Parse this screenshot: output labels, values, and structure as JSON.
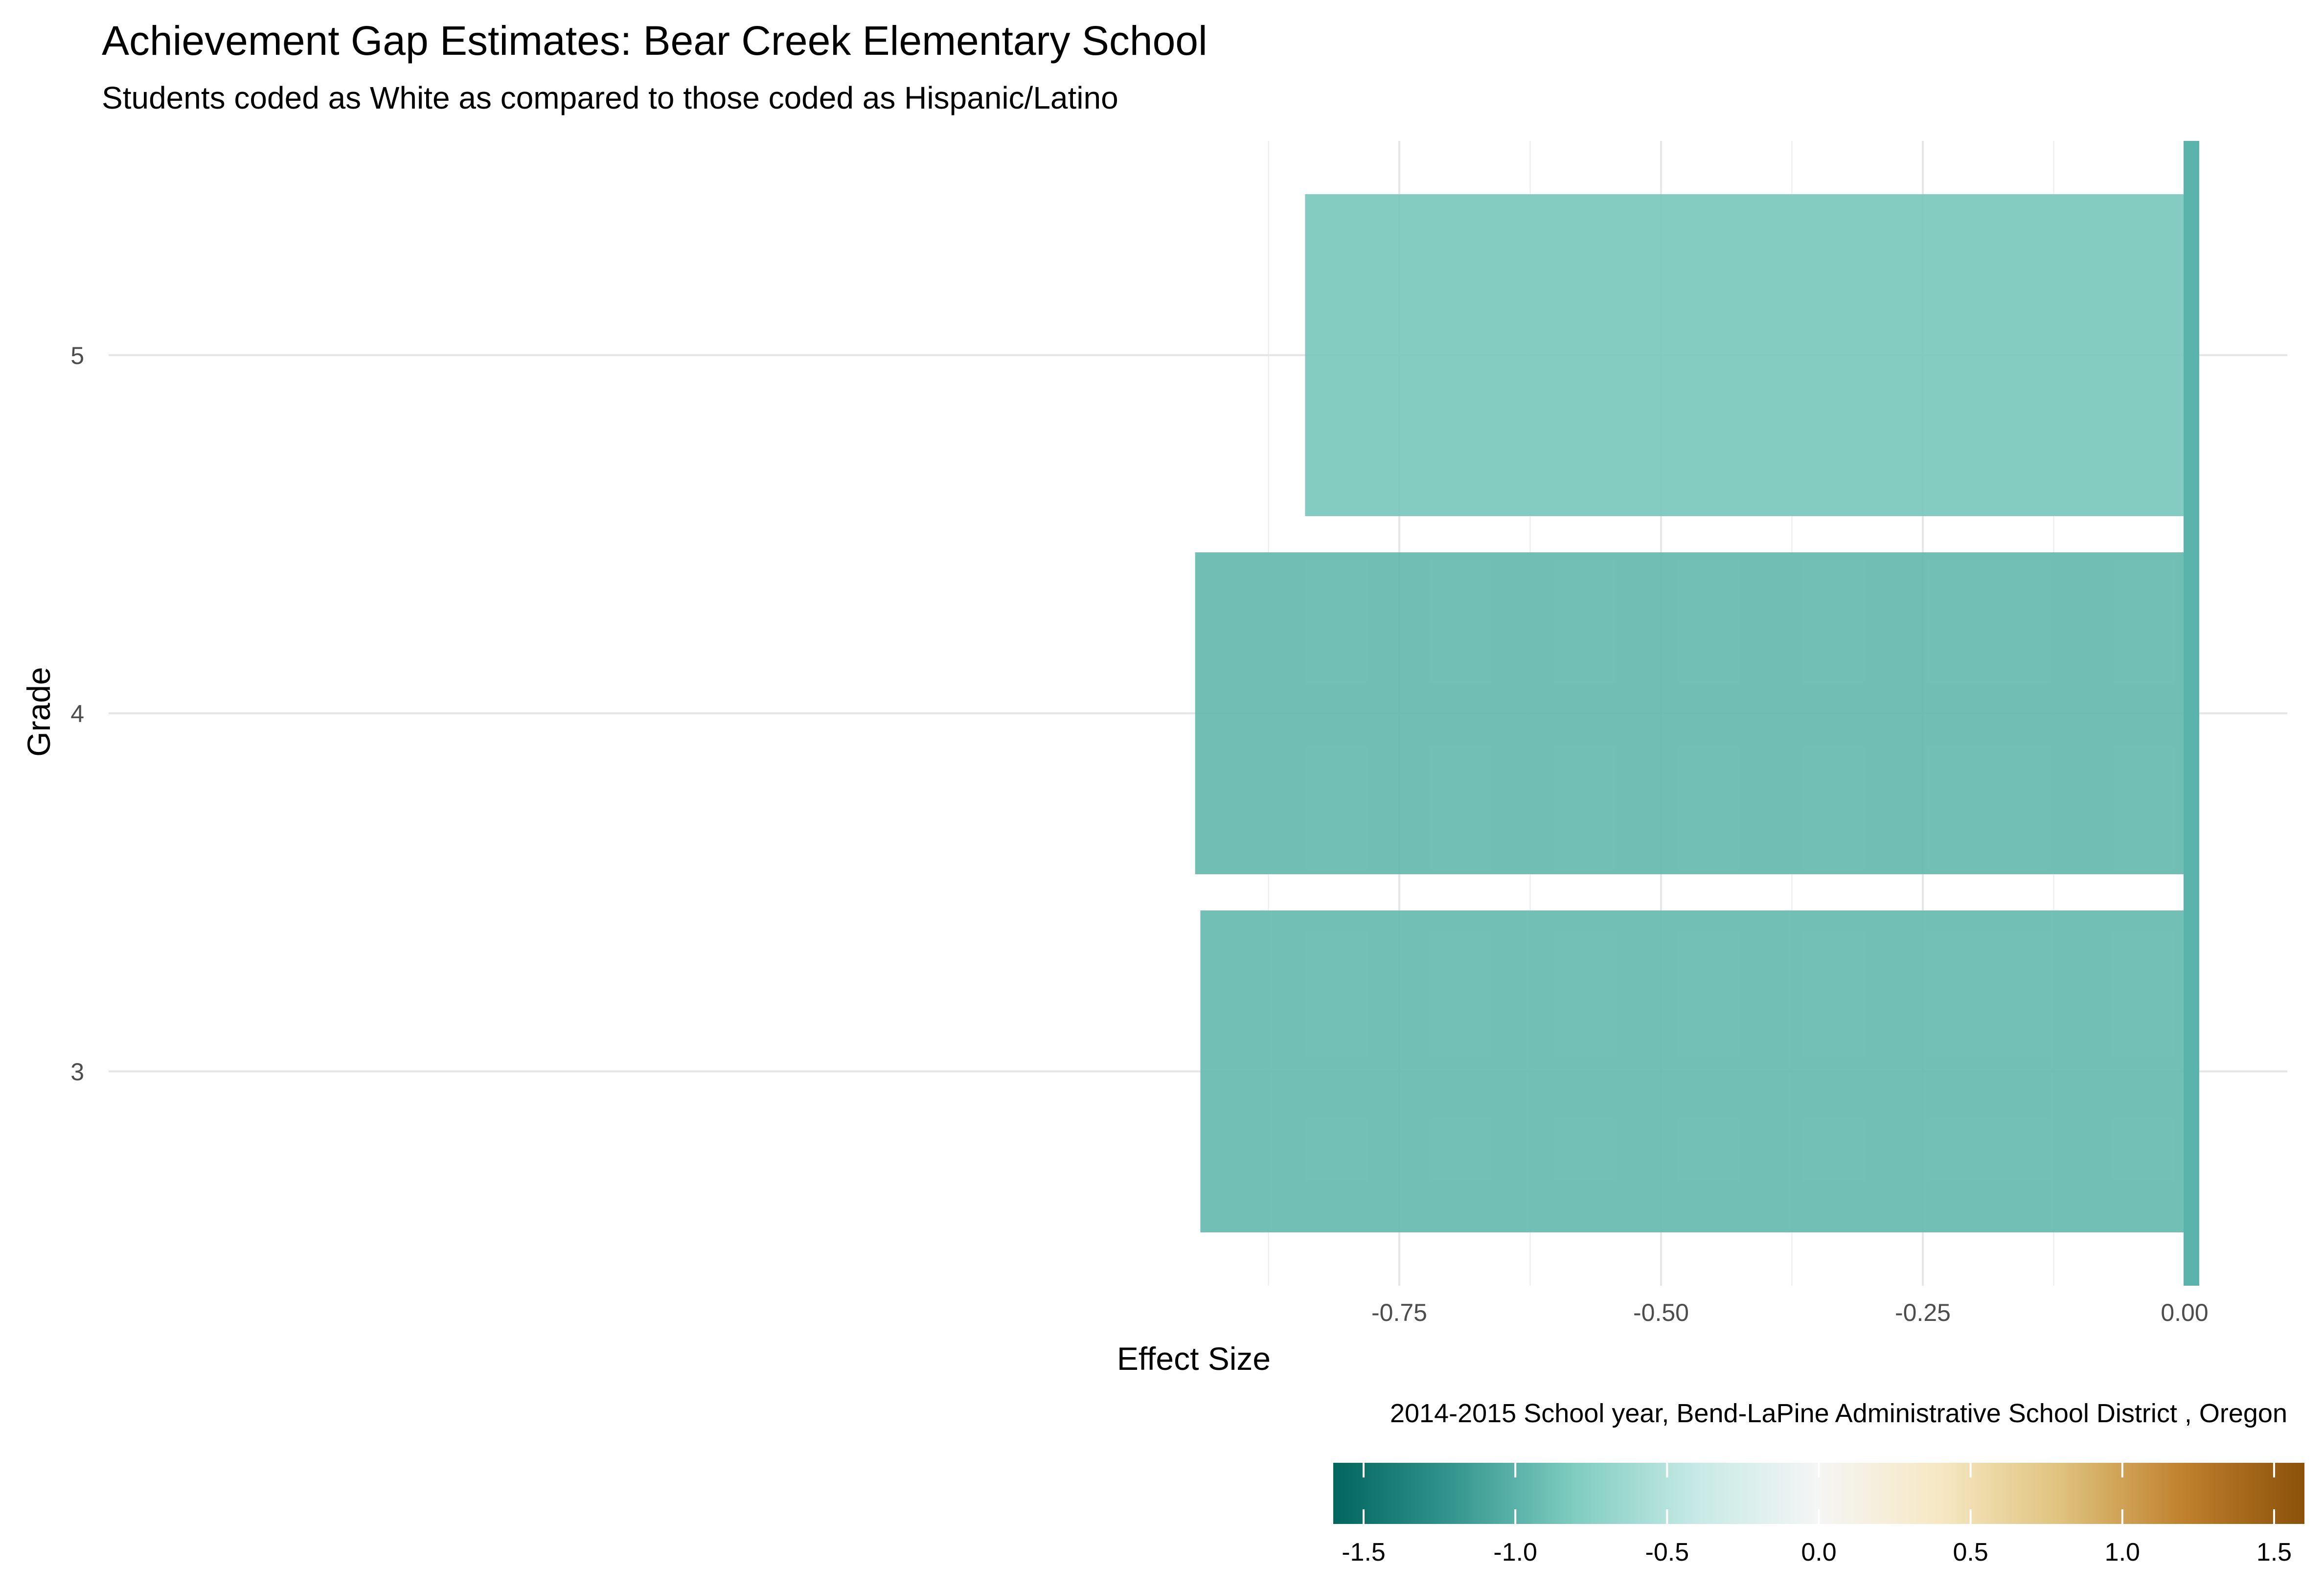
{
  "chart_data": {
    "type": "bar",
    "orientation": "horizontal",
    "title": "Achievement Gap Estimates: Bear Creek Elementary School",
    "subtitle": "Students coded as White as compared to those coded as Hispanic/Latino",
    "xlabel": "Effect Size",
    "ylabel": "Grade",
    "caption": "2014-2015 School year,  Bend-LaPine Administrative School District , Oregon",
    "categories": [
      "3",
      "4",
      "5"
    ],
    "values": [
      -0.94,
      -0.945,
      -0.84
    ],
    "xlim": [
      -0.95,
      0.015
    ],
    "x_ticks": [
      -0.75,
      -0.5,
      -0.25,
      0.0
    ],
    "x_tick_labels": [
      "-0.75",
      "-0.50",
      "-0.25",
      "0.00"
    ],
    "reference_line": 0.0,
    "grid": true,
    "legend": {
      "type": "colorbar",
      "position": "bottom-right",
      "range": [
        -1.6,
        1.6
      ],
      "ticks": [
        -1.5,
        -1.0,
        -0.5,
        0.0,
        0.5,
        1.0,
        1.5
      ],
      "tick_labels": [
        "-1.5",
        "-1.0",
        "-0.5",
        "0.0",
        "0.5",
        "1.0",
        "1.5"
      ],
      "colors": [
        "#01665e",
        "#35978f",
        "#80cdc1",
        "#c7eae5",
        "#f5f5f5",
        "#f6e8c3",
        "#dfc27d",
        "#bf812d",
        "#8c510a"
      ]
    },
    "colors": {
      "reference_line": "#5ab4ac"
    }
  }
}
